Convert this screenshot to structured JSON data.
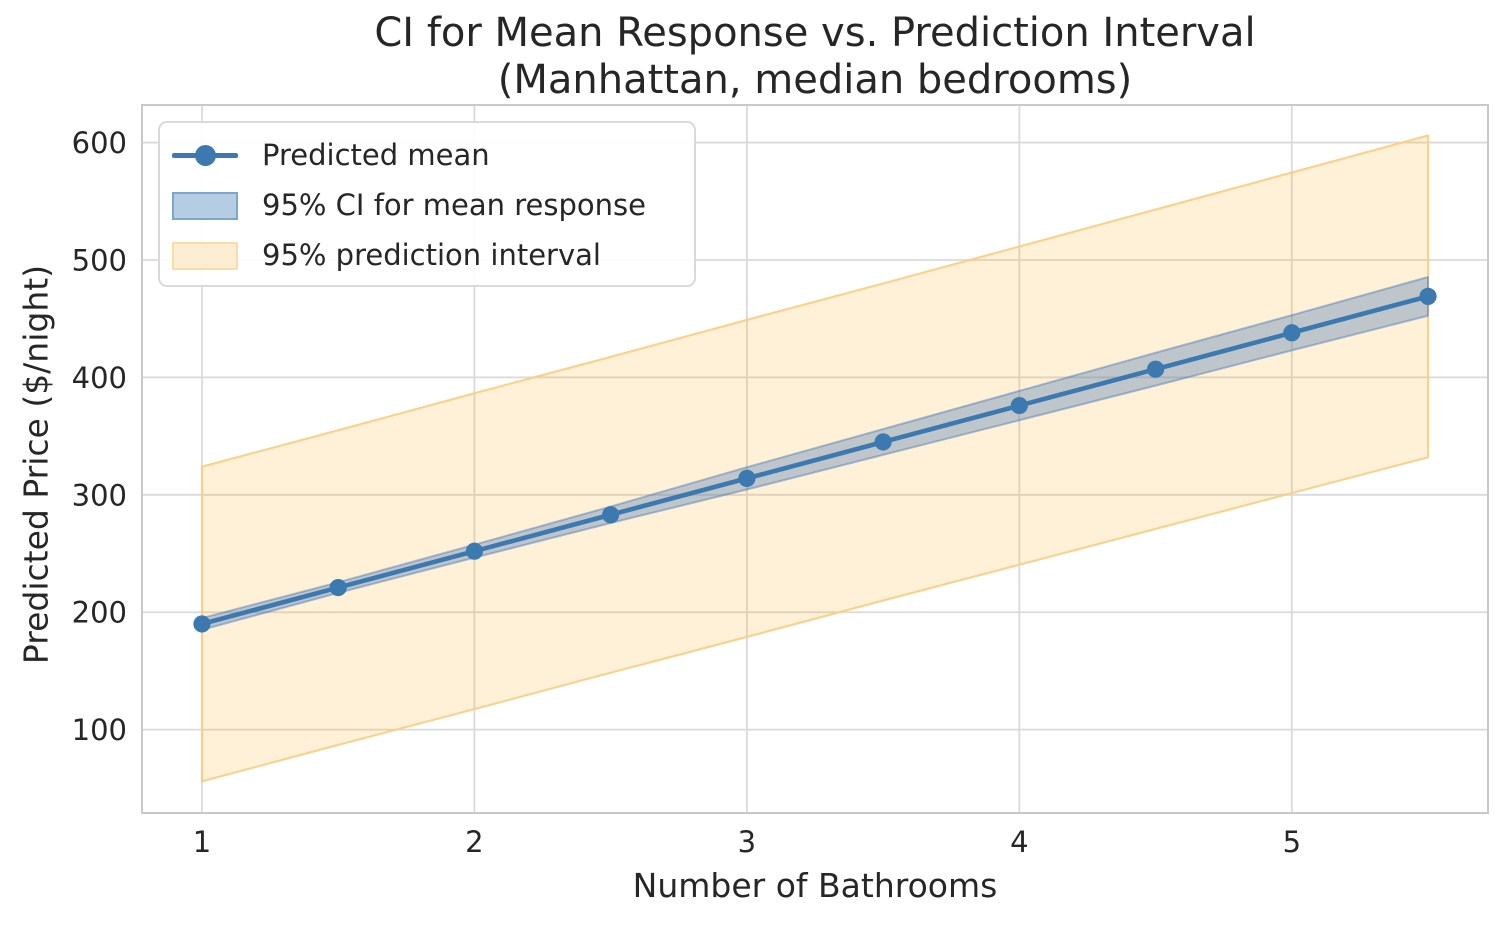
{
  "chart_data": {
    "type": "line",
    "title": "CI for Mean Response vs. Prediction Interval\n(Manhattan, median bedrooms)",
    "xlabel": "Number of Bathrooms",
    "ylabel": "Predicted Price ($/night)",
    "x": [
      1,
      1.5,
      2,
      2.5,
      3,
      3.5,
      4,
      4.5,
      5,
      5.5
    ],
    "series": {
      "mean": {
        "label": "Predicted mean",
        "values": [
          190,
          221,
          252,
          283,
          314,
          345,
          376,
          407,
          438,
          469
        ]
      },
      "ci": {
        "label": "95% CI for mean response",
        "lower": [
          185,
          216.5,
          246.5,
          276,
          304.5,
          334,
          363.5,
          393,
          423,
          452.5
        ],
        "upper": [
          195,
          225.5,
          257.5,
          290,
          323.5,
          356,
          388.5,
          421,
          453,
          485.5
        ]
      },
      "pi": {
        "label": "95% prediction interval",
        "lower": [
          56,
          87,
          117.5,
          148.5,
          179,
          210,
          240.5,
          271,
          301.5,
          332
        ],
        "upper": [
          324,
          355,
          386.5,
          417.5,
          449,
          480,
          511.5,
          543,
          574.5,
          606
        ]
      }
    },
    "xticks": [
      1,
      2,
      3,
      4,
      5
    ],
    "yticks": [
      100,
      200,
      300,
      400,
      500,
      600
    ],
    "xlim": [
      0.78,
      5.72
    ],
    "ylim": [
      29,
      632
    ],
    "grid": true,
    "legend_position": "upper left",
    "colors": {
      "line": "#3c79b0",
      "marker": "#3c79b0",
      "ci_fill": "rgba(70,119,180,0.35)",
      "ci_edge": "rgba(70,119,180,0.45)",
      "pi_fill": "rgba(255,171,38,0.18)",
      "pi_edge": "rgba(251,206,130,0.95)",
      "grid": "#dadada",
      "spine": "#c9c9c9",
      "text": "#262626"
    }
  }
}
